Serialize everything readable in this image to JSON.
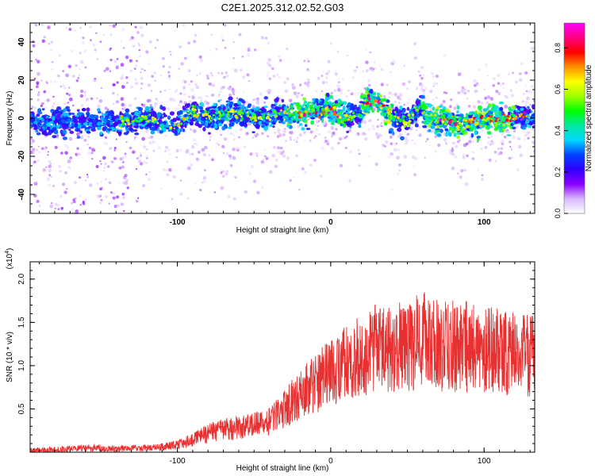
{
  "chart_data": [
    {
      "type": "heatmap",
      "title": "C2E1.2025.312.02.52.G03",
      "xlabel": "Height of straight line (km)",
      "ylabel": "Frequency (Hz)",
      "xlim": [
        -196,
        133
      ],
      "ylim": [
        -50,
        50
      ],
      "xticks": [
        -100,
        0,
        100
      ],
      "yticks": [
        -40,
        -20,
        0,
        20,
        40
      ],
      "colorbar": {
        "label": "Normalized spectral amplitude",
        "range": [
          0,
          0.92
        ],
        "ticks": [
          "0.0",
          "0.2",
          "0.4",
          "0.6",
          "0.8"
        ],
        "colors": [
          "#ffffff",
          "#d8b8ff",
          "#8a00ff",
          "#3000ff",
          "#0040ff",
          "#00d8ff",
          "#00e8a0",
          "#00ff00",
          "#a0ff00",
          "#ffff00",
          "#ff9000",
          "#ff0000",
          "#ff0080",
          "#ff00ff"
        ]
      },
      "ridge": {
        "heights": [
          -196,
          -180,
          -160,
          -140,
          -120,
          -100,
          -90,
          -80,
          -70,
          -60,
          -50,
          -40,
          -30,
          -20,
          -10,
          0,
          10,
          20,
          25,
          30,
          40,
          50,
          58,
          65,
          75,
          85,
          95,
          105,
          115,
          125,
          133
        ],
        "frequencies": [
          -3,
          -2,
          -1,
          -2,
          0,
          -4,
          4,
          0,
          2,
          3,
          0,
          1,
          2,
          2,
          3,
          5,
          0,
          3,
          11,
          8,
          1,
          -2,
          6,
          0,
          -1,
          -3,
          -2,
          0,
          -1,
          1,
          0
        ]
      }
    },
    {
      "type": "line",
      "title": "",
      "xlabel": "Height of straight line (km)",
      "ylabel": "SNR (10 * v/v)",
      "multiplier": "(x10",
      "multiplier_exp": "4",
      "multiplier_close": ")",
      "xlim": [
        -196,
        133
      ],
      "ylim": [
        0,
        2.2
      ],
      "xticks": [
        -100,
        0,
        100
      ],
      "yticks": [
        "0.5",
        "1.0",
        "1.5",
        "2.0"
      ],
      "series": [
        {
          "name": "SNR",
          "color": "#e83030",
          "x": [
            -196,
            -180,
            -160,
            -140,
            -120,
            -110,
            -100,
            -90,
            -80,
            -70,
            -60,
            -50,
            -40,
            -30,
            -20,
            -10,
            0,
            10,
            20,
            30,
            40,
            50,
            60,
            70,
            80,
            90,
            100,
            110,
            120,
            133
          ],
          "y": [
            0.02,
            0.03,
            0.05,
            0.04,
            0.05,
            0.06,
            0.09,
            0.14,
            0.22,
            0.26,
            0.28,
            0.31,
            0.36,
            0.5,
            0.66,
            0.8,
            0.92,
            1.02,
            1.15,
            1.2,
            1.2,
            1.22,
            1.3,
            1.23,
            1.22,
            1.22,
            1.18,
            1.16,
            1.14,
            1.1
          ]
        }
      ]
    }
  ]
}
